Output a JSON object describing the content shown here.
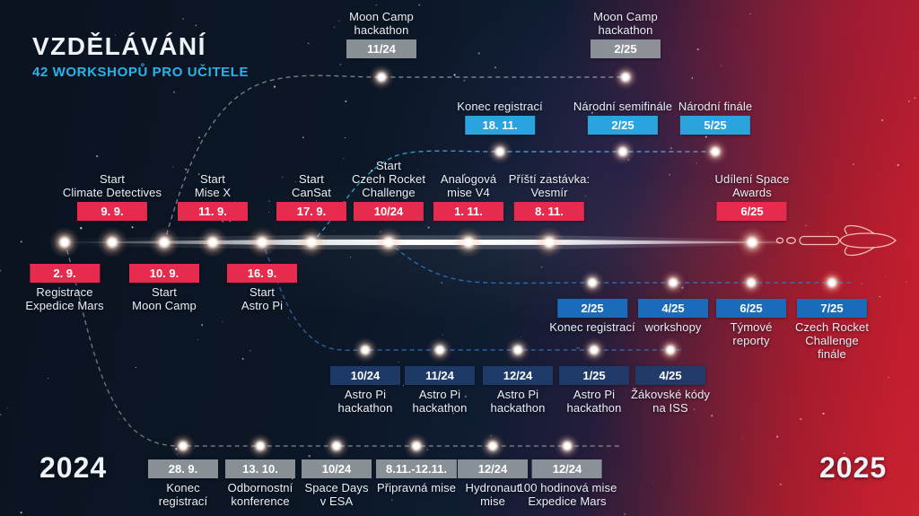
{
  "header": {
    "title": "VZDĚLÁVÁNÍ",
    "subtitle": "42 WORKSHOPŮ PRO UČITELE"
  },
  "years": {
    "start": "2024",
    "end": "2025"
  },
  "colors": {
    "badge_red": "#e62b4e",
    "badge_cyan": "#2aa3df",
    "badge_blue": "#1a6cba",
    "badge_navy": "#1e3d6d",
    "badge_gray": "#9aa0a5",
    "subtitle_cyan": "#2bb3e9"
  },
  "timeline": {
    "main_above": [
      {
        "label": "Start\nClimate Detectives",
        "date": "9. 9."
      },
      {
        "label": "Start\nMise X",
        "date": "11. 9."
      },
      {
        "label": "Start\nCanSat",
        "date": "17. 9."
      },
      {
        "label": "Start\nCzech Rocket\nChallenge",
        "date": "10/24"
      },
      {
        "label": "Analogová\nmise V4",
        "date": "1. 11."
      },
      {
        "label": "Příští zastávka:\nVesmír",
        "date": "8. 11."
      },
      {
        "label": "Udílení Space\nAwards",
        "date": "6/25"
      }
    ],
    "main_below": [
      {
        "date": "2. 9.",
        "label": "Registrace\nExpedice Mars"
      },
      {
        "date": "10. 9.",
        "label": "Start\nMoon Camp"
      },
      {
        "date": "16. 9.",
        "label": "Start\nAstro Pi"
      }
    ],
    "moon_camp": [
      {
        "label": "Moon Camp\nhackathon",
        "date": "11/24"
      },
      {
        "label": "Moon Camp\nhackathon",
        "date": "2/25"
      }
    ],
    "cansat": [
      {
        "label": "Konec registrací",
        "date": "18. 11."
      },
      {
        "label": "Národní semifinále",
        "date": "2/25"
      },
      {
        "label": "Národní finále",
        "date": "5/25"
      }
    ],
    "czech_rocket": [
      {
        "date": "2/25",
        "label": "Konec registrací"
      },
      {
        "date": "4/25",
        "label": "workshopy"
      },
      {
        "date": "6/25",
        "label": "Týmové\nreporty"
      },
      {
        "date": "7/25",
        "label": "Czech Rocket\nChallenge\nfinále"
      }
    ],
    "astro_pi": [
      {
        "date": "10/24",
        "label": "Astro Pi\nhackathon"
      },
      {
        "date": "11/24",
        "label": "Astro Pi\nhackathon"
      },
      {
        "date": "12/24",
        "label": "Astro Pi\nhackathon"
      },
      {
        "date": "1/25",
        "label": "Astro Pi\nhackathon"
      },
      {
        "date": "4/25",
        "label": "Žákovské kódy\nna ISS"
      }
    ],
    "expedice_mars": [
      {
        "date": "28. 9.",
        "label": "Konec\nregistrací"
      },
      {
        "date": "13. 10.",
        "label": "Odbornostní\nkonference"
      },
      {
        "date": "10/24",
        "label": "Space Days\nv ESA"
      },
      {
        "date": "8.11.-12.11.",
        "label": "Připravná mise"
      },
      {
        "date": "12/24",
        "label": "Hydronaut\nmise"
      },
      {
        "date": "12/24",
        "label": "100 hodinová mise\nExpedice Mars"
      }
    ]
  }
}
